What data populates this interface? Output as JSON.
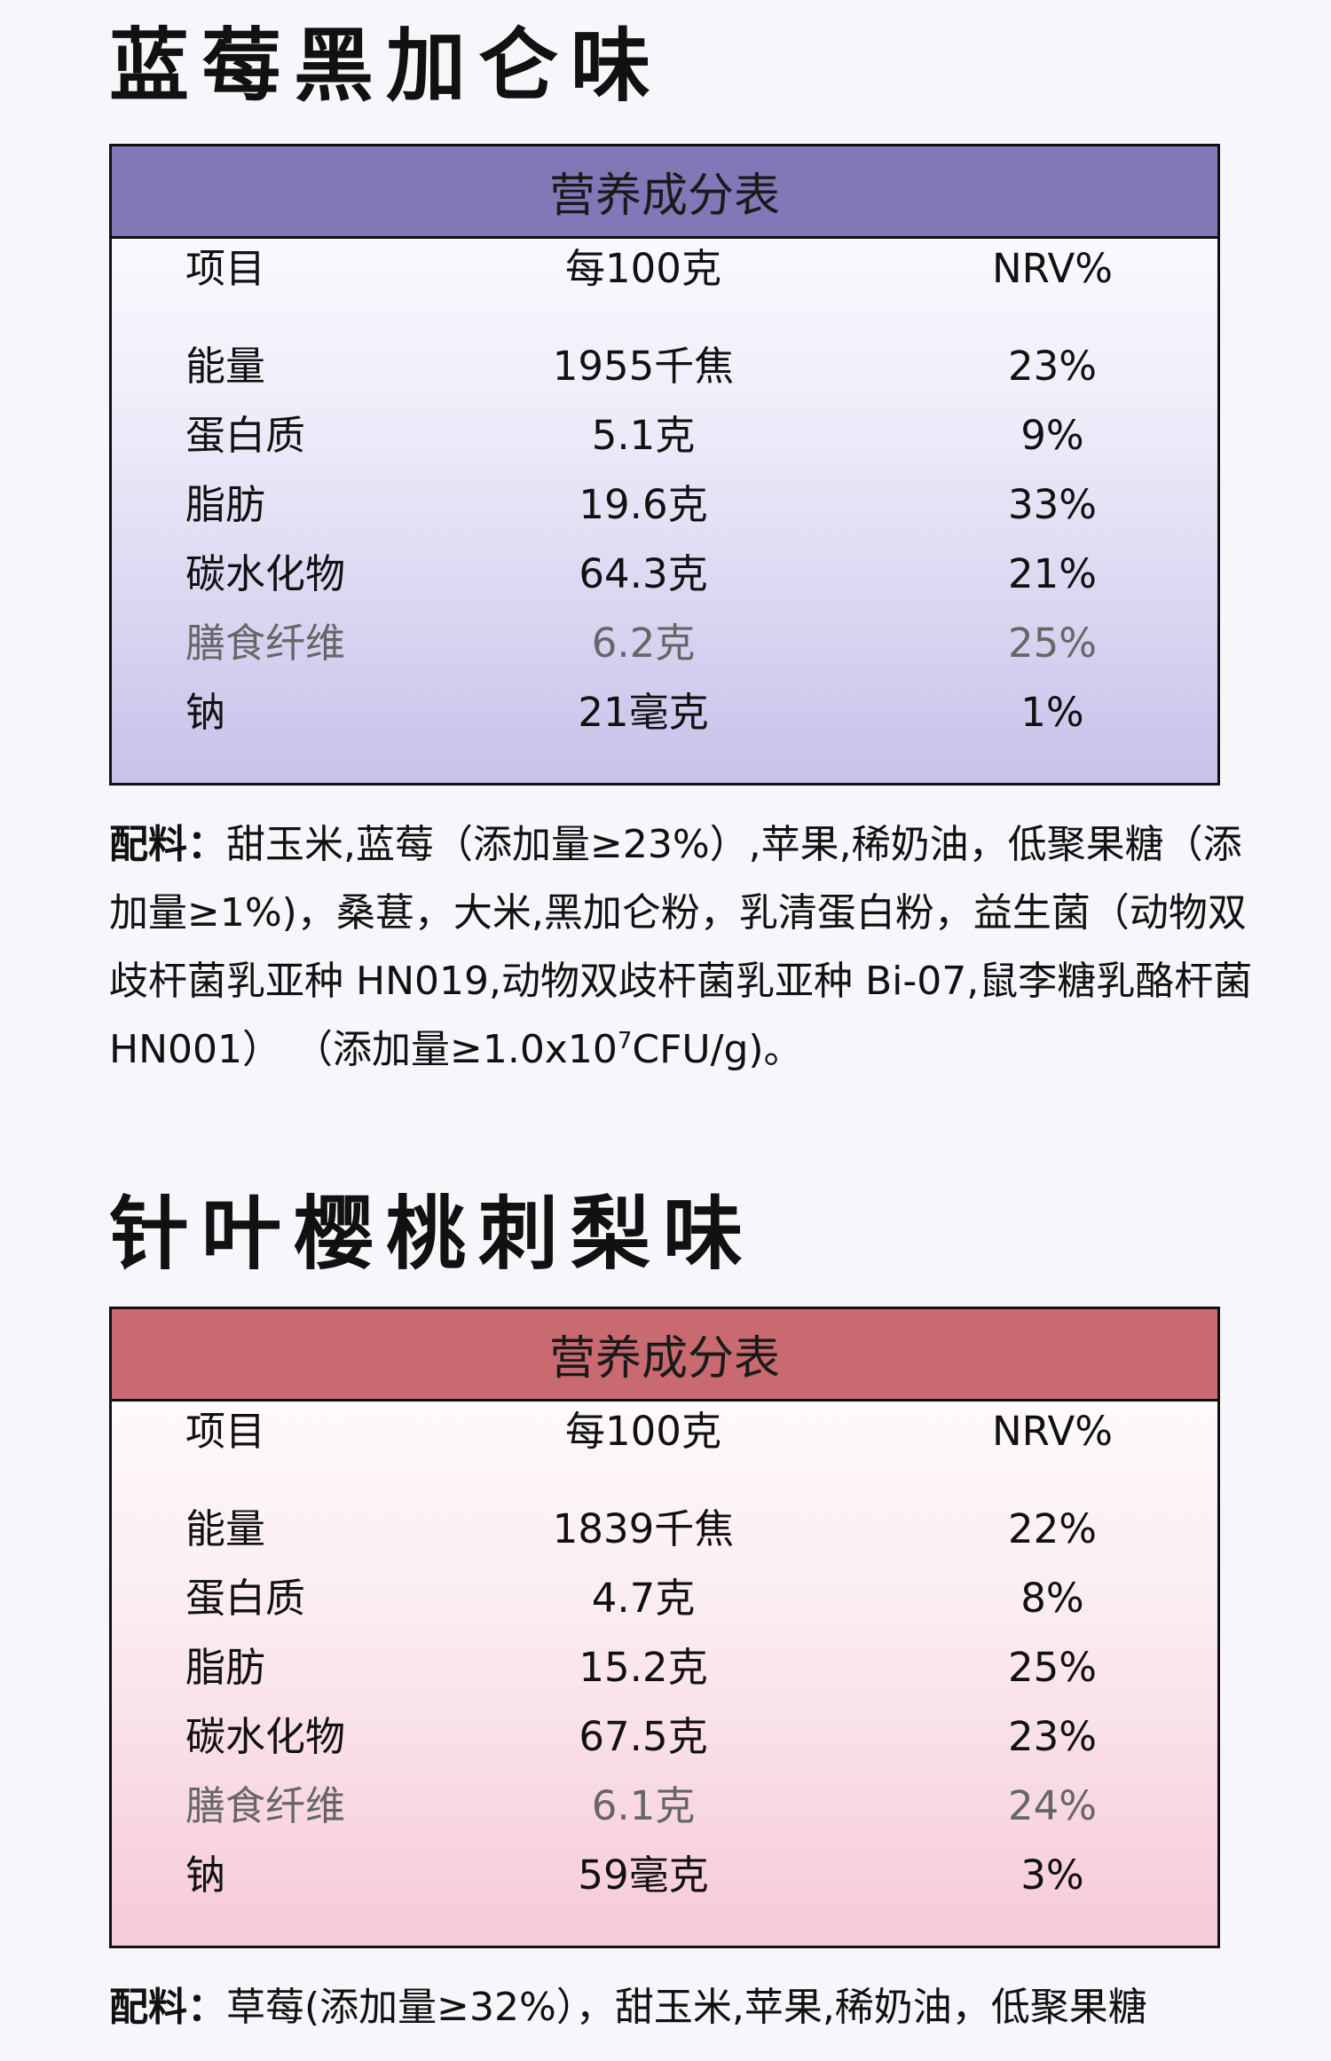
{
  "products": [
    {
      "title": "蓝莓黑加仑味",
      "table": {
        "heading": "营养成分表",
        "columns": [
          "项目",
          "每100克",
          "NRV%"
        ],
        "rows": [
          {
            "item": "能量",
            "per100g": "1955千焦",
            "nrv": "23%"
          },
          {
            "item": "蛋白质",
            "per100g": "5.1克",
            "nrv": "9%"
          },
          {
            "item": "脂肪",
            "per100g": "19.6克",
            "nrv": "33%"
          },
          {
            "item": "碳水化物",
            "per100g": "64.3克",
            "nrv": "21%"
          },
          {
            "item": "膳食纤维",
            "per100g": "6.2克",
            "nrv": "25%"
          },
          {
            "item": "钠",
            "per100g": "21毫克",
            "nrv": "1%"
          }
        ]
      },
      "ingredients": {
        "label": "配料：",
        "text_main": "甜玉米,蓝莓（添加量≥23%）,苹果,稀奶油，低聚果糖（添加量≥1%)，桑葚，大米,黑加仑粉，乳清蛋白粉，益生菌（动物双歧杆菌乳亚种 HN019,动物双歧杆菌乳亚种 Bi-07,鼠李糖乳酪杆菌HN001） （添加量≥1.0x10",
        "sup": "7",
        "text_tail": "CFU/g)。"
      }
    },
    {
      "title": "针叶樱桃刺梨味",
      "table": {
        "heading": "营养成分表",
        "columns": [
          "项目",
          "每100克",
          "NRV%"
        ],
        "rows": [
          {
            "item": "能量",
            "per100g": "1839千焦",
            "nrv": "22%"
          },
          {
            "item": "蛋白质",
            "per100g": "4.7克",
            "nrv": "8%"
          },
          {
            "item": "脂肪",
            "per100g": "15.2克",
            "nrv": "25%"
          },
          {
            "item": "碳水化物",
            "per100g": "67.5克",
            "nrv": "23%"
          },
          {
            "item": "膳食纤维",
            "per100g": "6.1克",
            "nrv": "24%"
          },
          {
            "item": "钠",
            "per100g": "59毫克",
            "nrv": "3%"
          }
        ]
      },
      "ingredients": {
        "label": "配料：",
        "text_main": "草莓(添加量≥32%），甜玉米,苹果,稀奶油，低聚果糖",
        "sup": "",
        "text_tail": ""
      }
    }
  ]
}
